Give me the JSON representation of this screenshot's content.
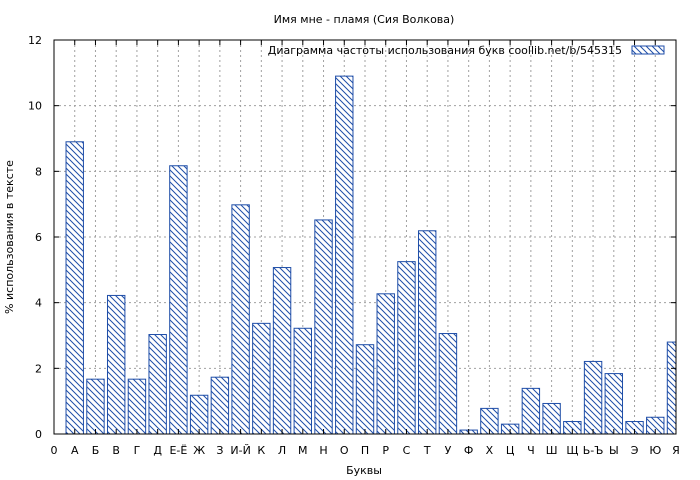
{
  "chart_data": {
    "type": "bar",
    "title": "Имя мне - пламя (Сия Волкова)",
    "xlabel": "Буквы",
    "ylabel": "% использования в тексте",
    "ylim": [
      0,
      12
    ],
    "yticks": [
      0,
      2,
      4,
      6,
      8,
      10,
      12
    ],
    "grid": true,
    "legend_position": "top-right",
    "bar_color": "#1f4ea8",
    "categories": [
      "0",
      "А",
      "Б",
      "В",
      "Г",
      "Д",
      "Е-Ё",
      "Ж",
      "З",
      "И-Й",
      "К",
      "Л",
      "М",
      "Н",
      "О",
      "П",
      "Р",
      "С",
      "Т",
      "У",
      "Ф",
      "Х",
      "Ц",
      "Ч",
      "Ш",
      "Щ",
      "Ь-Ъ",
      "Ы",
      "Э",
      "Ю",
      "Я"
    ],
    "series": [
      {
        "name": "Диаграмма частоты использования букв  coollib.net/b/545315",
        "values": [
          0,
          8.9,
          1.67,
          4.22,
          1.67,
          3.03,
          8.17,
          1.18,
          1.73,
          6.98,
          3.37,
          5.07,
          3.22,
          6.52,
          10.9,
          2.72,
          4.27,
          5.25,
          6.19,
          3.06,
          0.12,
          0.78,
          0.3,
          1.39,
          0.93,
          0.38,
          2.21,
          1.84,
          0.38,
          0.51,
          2.8
        ]
      }
    ]
  }
}
